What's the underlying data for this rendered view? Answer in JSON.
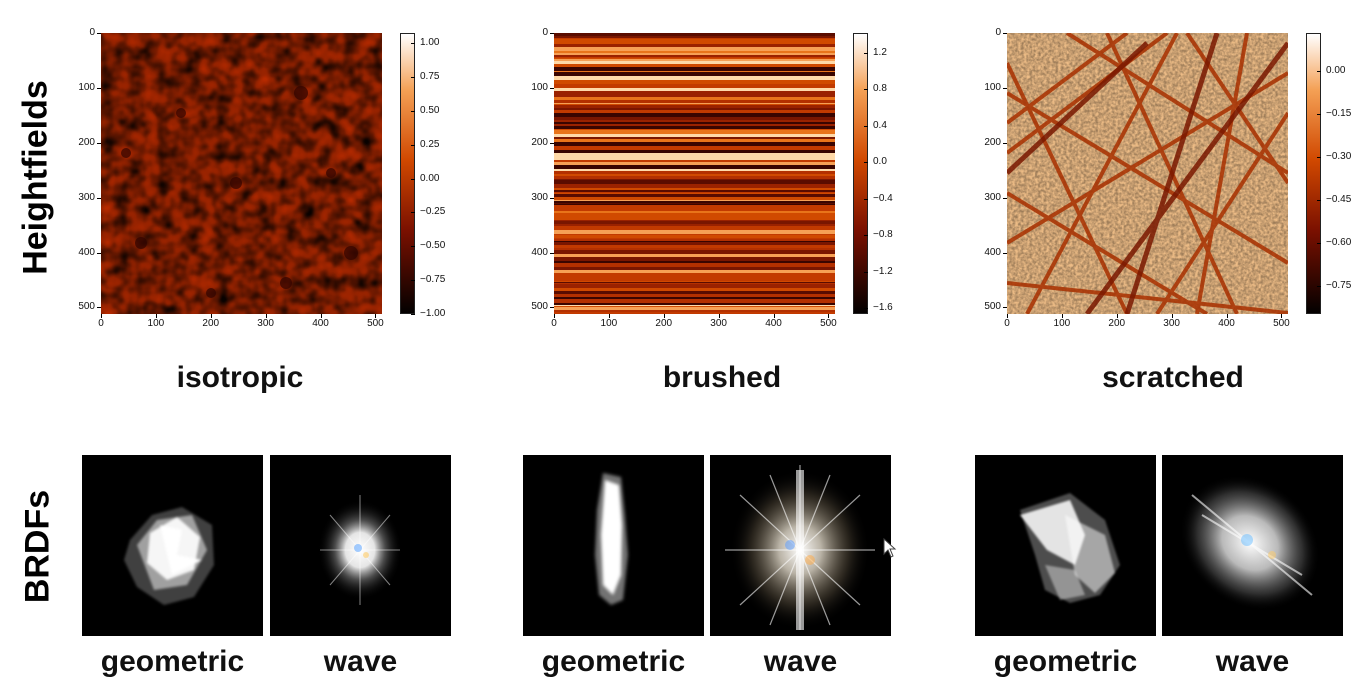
{
  "row_labels": {
    "heightfields": "Heightfields",
    "brdfs": "BRDFs"
  },
  "axis_ticks": {
    "y": [
      "0",
      "100",
      "200",
      "300",
      "400",
      "500"
    ],
    "x": [
      "0",
      "100",
      "200",
      "300",
      "400",
      "500"
    ]
  },
  "panels": [
    {
      "name": "isotropic",
      "caption": "isotropic",
      "colorbar_ticks": [
        "1.00",
        "0.75",
        "0.50",
        "0.25",
        "0.00",
        "−0.25",
        "−0.50",
        "−0.75",
        "−1.00"
      ],
      "brdf_labels": [
        "geometric",
        "wave"
      ]
    },
    {
      "name": "brushed",
      "caption": "brushed",
      "colorbar_ticks": [
        "1.2",
        "0.8",
        "0.4",
        "0.0",
        "−0.4",
        "−0.8",
        "−1.2",
        "−1.6"
      ],
      "brdf_labels": [
        "geometric",
        "wave"
      ]
    },
    {
      "name": "scratched",
      "caption": "scratched",
      "colorbar_ticks": [
        "0.00",
        "−0.15",
        "−0.30",
        "−0.45",
        "−0.60",
        "−0.75"
      ],
      "brdf_labels": [
        "geometric",
        "wave"
      ]
    }
  ],
  "colormap": {
    "name": "gist_heat",
    "colors": [
      "#000000",
      "#7a1000",
      "#d04800",
      "#f4a055",
      "#ffffff"
    ]
  }
}
